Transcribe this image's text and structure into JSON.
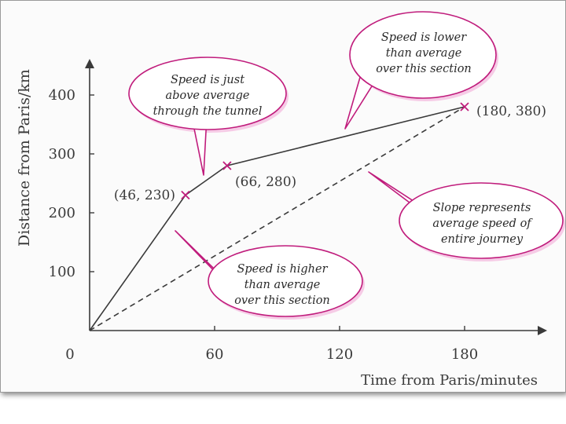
{
  "chart_data": {
    "type": "line",
    "xlabel": "Time from Paris/minutes",
    "ylabel": "Distance from Paris/km",
    "xlim": [
      0,
      190
    ],
    "ylim": [
      0,
      440
    ],
    "x_ticks": [
      0,
      60,
      120,
      180
    ],
    "x_tick_labels": [
      "0",
      "60",
      "120",
      "180"
    ],
    "y_ticks": [
      100,
      200,
      300,
      400
    ],
    "y_tick_labels": [
      "100",
      "200",
      "300",
      "400"
    ],
    "grid": false,
    "series": [
      {
        "style": "solid",
        "x": [
          0,
          46,
          66,
          180
        ],
        "y": [
          0,
          230,
          280,
          380
        ]
      },
      {
        "style": "dashed",
        "x": [
          0,
          180
        ],
        "y": [
          0,
          380
        ]
      }
    ],
    "points": [
      {
        "x": 46,
        "y": 230,
        "label": "(46, 230)"
      },
      {
        "x": 66,
        "y": 280,
        "label": "(66, 280)"
      },
      {
        "x": 180,
        "y": 380,
        "label": "(180, 380)"
      }
    ],
    "annotations": [
      {
        "lines": [
          "Speed is just",
          "above average",
          "through the tunnel"
        ]
      },
      {
        "lines": [
          "Speed is lower",
          "than average",
          "over this section"
        ]
      },
      {
        "lines": [
          "Speed is higher",
          "than average",
          "over this section"
        ]
      },
      {
        "lines": [
          "Slope represents",
          "average speed of",
          "entire journey"
        ]
      }
    ],
    "colors": {
      "line": "#3a3a3a",
      "marker": "#c01c7c",
      "bubble_border": "#c01c7c"
    }
  }
}
